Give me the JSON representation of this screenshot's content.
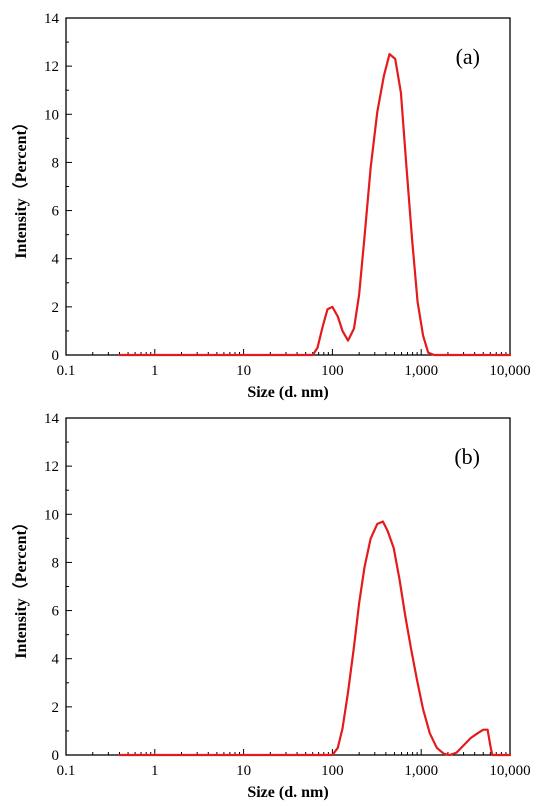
{
  "chart_data": [
    {
      "type": "line",
      "panel_label": "(a)",
      "xlabel": "Size (d. nm)",
      "ylabel": "Intensity（Percent）",
      "x_scale": "log",
      "xlim": [
        0.1,
        10000
      ],
      "ylim": [
        0,
        14
      ],
      "x_ticks": [
        {
          "value": 0.1,
          "label": "0.1"
        },
        {
          "value": 1,
          "label": "1"
        },
        {
          "value": 10,
          "label": "10"
        },
        {
          "value": 100,
          "label": "100"
        },
        {
          "value": 1000,
          "label": "1,000"
        },
        {
          "value": 10000,
          "label": "10,000"
        }
      ],
      "y_ticks": [
        {
          "value": 0,
          "label": "0"
        },
        {
          "value": 2,
          "label": "2"
        },
        {
          "value": 4,
          "label": "4"
        },
        {
          "value": 6,
          "label": "6"
        },
        {
          "value": 8,
          "label": "8"
        },
        {
          "value": 10,
          "label": "10"
        },
        {
          "value": 12,
          "label": "12"
        },
        {
          "value": 14,
          "label": "14"
        }
      ],
      "grid": false,
      "color": "#e41a1c",
      "x": [
        0.4,
        1,
        10,
        50,
        60,
        68,
        78,
        88,
        100,
        115,
        130,
        150,
        175,
        200,
        230,
        270,
        320,
        380,
        440,
        510,
        590,
        680,
        790,
        910,
        1050,
        1200,
        1400,
        2000,
        5000,
        10000
      ],
      "y": [
        0,
        0,
        0,
        0,
        0,
        0.3,
        1.2,
        1.9,
        2.0,
        1.6,
        1.0,
        0.6,
        1.1,
        2.5,
        4.9,
        7.8,
        10.1,
        11.6,
        12.5,
        12.3,
        10.9,
        7.9,
        4.8,
        2.2,
        0.8,
        0.1,
        0,
        0,
        0,
        0
      ]
    },
    {
      "type": "line",
      "panel_label": "(b)",
      "xlabel": "Size (d. nm)",
      "ylabel": "Intensity（Percent）",
      "x_scale": "log",
      "xlim": [
        0.1,
        10000
      ],
      "ylim": [
        0,
        14
      ],
      "x_ticks": [
        {
          "value": 0.1,
          "label": "0.1"
        },
        {
          "value": 1,
          "label": "1"
        },
        {
          "value": 10,
          "label": "10"
        },
        {
          "value": 100,
          "label": "100"
        },
        {
          "value": 1000,
          "label": "1,000"
        },
        {
          "value": 10000,
          "label": "10,000"
        }
      ],
      "y_ticks": [
        {
          "value": 0,
          "label": "0"
        },
        {
          "value": 2,
          "label": "2"
        },
        {
          "value": 4,
          "label": "4"
        },
        {
          "value": 6,
          "label": "6"
        },
        {
          "value": 8,
          "label": "8"
        },
        {
          "value": 10,
          "label": "10"
        },
        {
          "value": 12,
          "label": "12"
        },
        {
          "value": 14,
          "label": "14"
        }
      ],
      "grid": false,
      "color": "#e41a1c",
      "x": [
        0.4,
        1,
        10,
        100,
        115,
        130,
        150,
        175,
        200,
        230,
        270,
        320,
        370,
        420,
        490,
        570,
        660,
        770,
        900,
        1050,
        1250,
        1500,
        1800,
        2100,
        2500,
        3000,
        3600,
        4300,
        5000,
        5600,
        6000,
        6300,
        10000
      ],
      "y": [
        0,
        0,
        0,
        0,
        0.3,
        1.1,
        2.6,
        4.5,
        6.3,
        7.8,
        9.0,
        9.6,
        9.7,
        9.3,
        8.6,
        7.3,
        5.8,
        4.4,
        3.1,
        1.9,
        0.9,
        0.3,
        0.05,
        0,
        0.1,
        0.4,
        0.7,
        0.9,
        1.05,
        1.05,
        0.4,
        0,
        0
      ]
    }
  ]
}
